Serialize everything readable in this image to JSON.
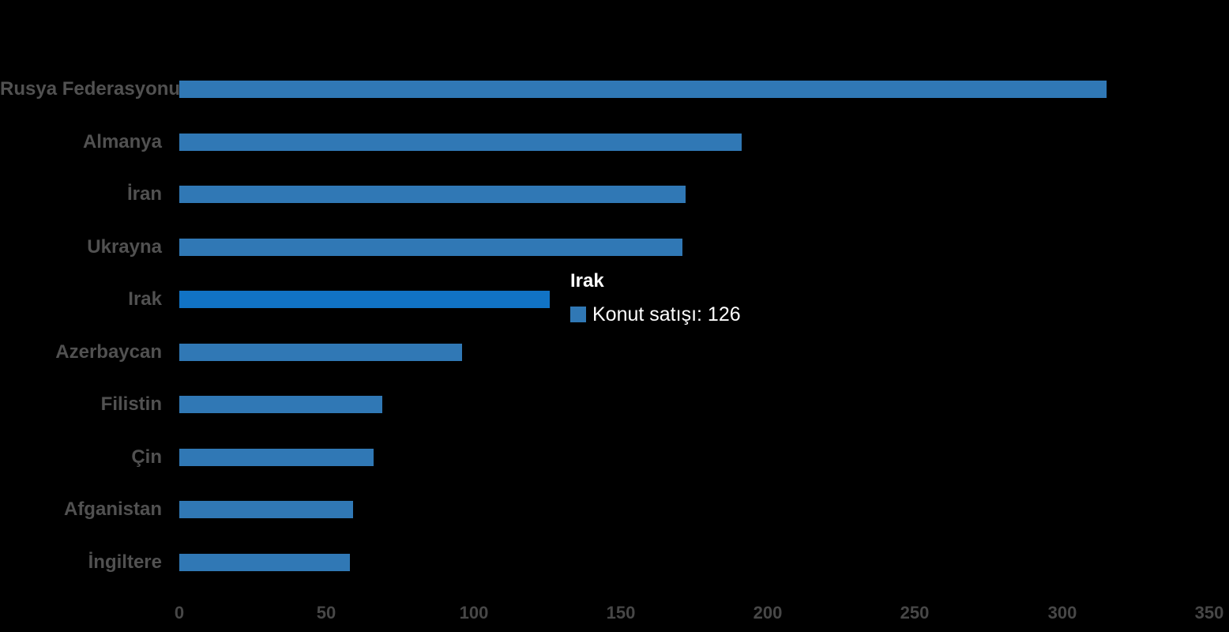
{
  "chart_data": {
    "type": "bar",
    "orientation": "horizontal",
    "title": "",
    "categories": [
      "Rusya Federasyonu",
      "Almanya",
      "İran",
      "Ukrayna",
      "Irak",
      "Azerbaycan",
      "Filistin",
      "Çin",
      "Afganistan",
      "İngiltere"
    ],
    "series": [
      {
        "name": "Konut satışı",
        "values": [
          315,
          191,
          172,
          171,
          126,
          96,
          69,
          66,
          59,
          58
        ]
      }
    ],
    "xlabel": "",
    "ylabel": "",
    "xlim": [
      0,
      350
    ],
    "x_ticks": [
      "0",
      "50",
      "100",
      "150",
      "200",
      "250",
      "300",
      "350"
    ],
    "grid": false,
    "legend_position": "none",
    "highlighted_index": 4,
    "highlighted_category": "Irak",
    "colors": {
      "bar": "#3078b5",
      "bar_highlight": "#1173c5",
      "category_label": "#515151",
      "axis_label": "#474747",
      "background": "#000000"
    }
  },
  "tooltip": {
    "title": "Irak",
    "series_name": "Konut satışı",
    "value": "126",
    "text": "Konut satışı: 126",
    "swatch_color": "#3078b5",
    "text_color": "#ffffff"
  }
}
